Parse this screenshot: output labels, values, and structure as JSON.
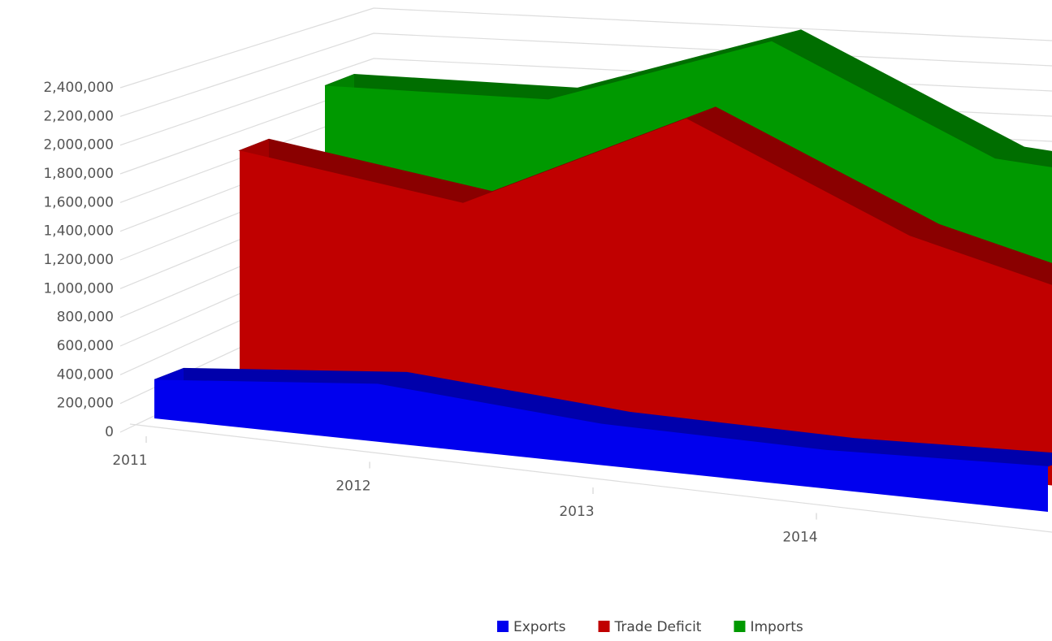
{
  "chart_data": {
    "type": "area3d",
    "categories": [
      "2011",
      "2012",
      "2013",
      "2014",
      null
    ],
    "series": [
      {
        "name": "Exports",
        "color": "#0000ee",
        "values": [
          280000,
          420000,
          300000,
          280000,
          330000
        ]
      },
      {
        "name": "Trade Deficit",
        "color": "#c00000",
        "values": [
          1810000,
          1600000,
          2380000,
          1700000,
          1310000
        ]
      },
      {
        "name": "Imports",
        "color": "#009900",
        "values": [
          2150000,
          2220000,
          2810000,
          2130000,
          2050000
        ]
      }
    ],
    "ylim": [
      0,
      2400000
    ],
    "yticks": [
      0,
      {
        "value": 200000,
        "label": "200,000"
      },
      {
        "value": 400000,
        "label": "400,000"
      },
      {
        "value": 600000,
        "label": "600,000"
      },
      {
        "value": 800000,
        "label": "800,000"
      },
      {
        "value": 1000000,
        "label": "1,000,000"
      },
      {
        "value": 1200000,
        "label": "1,200,000"
      },
      {
        "value": 1400000,
        "label": "1,400,000"
      },
      {
        "value": 1600000,
        "label": "1,600,000"
      },
      {
        "value": 1800000,
        "label": "1,800,000"
      },
      {
        "value": 2000000,
        "label": "2,000,000"
      },
      {
        "value": 2200000,
        "label": "2,200,000"
      },
      {
        "value": 2400000,
        "label": "2,400,000"
      }
    ],
    "grid": true,
    "legend": "bottom"
  }
}
